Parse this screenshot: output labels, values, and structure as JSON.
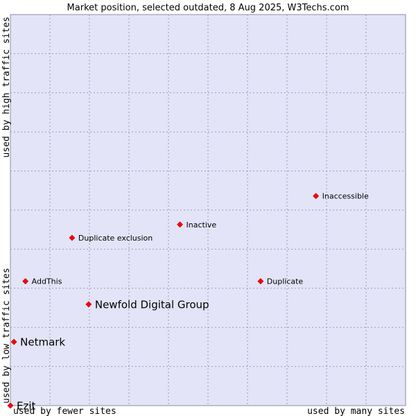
{
  "chart_data": {
    "type": "scatter",
    "title": "Market position, selected outdated, 8 Aug 2025, W3Techs.com",
    "xlabel_left": "used by fewer sites",
    "xlabel_right": "used by many sites",
    "ylabel_bottom": "used by low traffic sites",
    "ylabel_top": "used by high traffic sites",
    "xlim": [
      0,
      100
    ],
    "ylim": [
      0,
      100
    ],
    "grid": true,
    "colors": {
      "plot_bg": "#e4e4f8",
      "marker": "#ff0000",
      "grid": "#9a9ab4"
    },
    "points": [
      {
        "label": "Inaccessible",
        "x": 77.3,
        "y": 53.6,
        "size": "small"
      },
      {
        "label": "Inactive",
        "x": 42.9,
        "y": 46.3,
        "size": "small"
      },
      {
        "label": "Duplicate exclusion",
        "x": 15.6,
        "y": 42.9,
        "size": "small"
      },
      {
        "label": "AddThis",
        "x": 3.8,
        "y": 31.8,
        "size": "small"
      },
      {
        "label": "Duplicate",
        "x": 63.3,
        "y": 31.8,
        "size": "small"
      },
      {
        "label": "Newfold Digital Group",
        "x": 19.8,
        "y": 25.9,
        "size": "big"
      },
      {
        "label": "Netmark",
        "x": 0.9,
        "y": 16.3,
        "size": "big"
      },
      {
        "label": "Ezit",
        "x": 0.0,
        "y": 0.0,
        "size": "big"
      }
    ]
  }
}
